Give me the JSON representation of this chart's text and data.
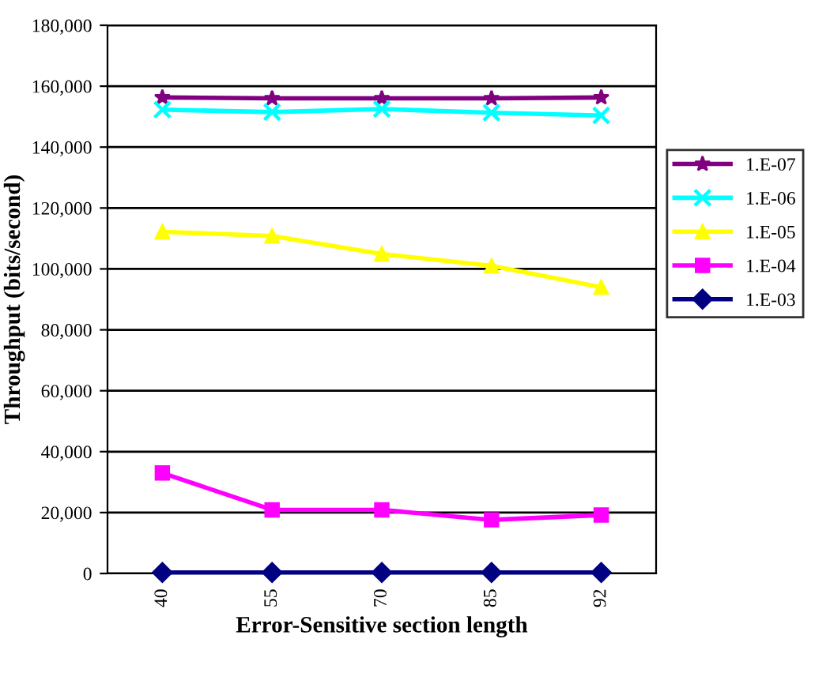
{
  "chart_data": {
    "type": "line",
    "xlabel": "Error-Sensitive section length",
    "ylabel": "Throughput (bits/second)",
    "categories": [
      "40",
      "55",
      "70",
      "85",
      "92"
    ],
    "series": [
      {
        "name": "1.E-07",
        "color": "#800080",
        "marker": "star",
        "values": [
          156300,
          156000,
          156000,
          156000,
          156300
        ]
      },
      {
        "name": "1.E-06",
        "color": "#00ffff",
        "marker": "cross",
        "values": [
          152300,
          151500,
          152500,
          151300,
          150400
        ]
      },
      {
        "name": "1.E-05",
        "color": "#ffff00",
        "marker": "triangle",
        "values": [
          112200,
          110800,
          104900,
          101000,
          94000
        ]
      },
      {
        "name": "1.E-04",
        "color": "#ff00ff",
        "marker": "square",
        "values": [
          33000,
          20900,
          20900,
          17600,
          19200
        ]
      },
      {
        "name": "1.E-03",
        "color": "#000080",
        "marker": "diamond",
        "values": [
          300,
          300,
          300,
          300,
          300
        ]
      }
    ],
    "ylim": [
      0,
      180000
    ],
    "yticks": [
      {
        "value": 0,
        "label": "0"
      },
      {
        "value": 20000,
        "label": "20,000"
      },
      {
        "value": 40000,
        "label": "40,000"
      },
      {
        "value": 60000,
        "label": "60,000"
      },
      {
        "value": 80000,
        "label": "80,000"
      },
      {
        "value": 100000,
        "label": "100,000"
      },
      {
        "value": 120000,
        "label": "120,000"
      },
      {
        "value": 140000,
        "label": "140,000"
      },
      {
        "value": 160000,
        "label": "160,000"
      },
      {
        "value": 180000,
        "label": "180,000"
      }
    ],
    "grid": "y",
    "legend": "right"
  }
}
